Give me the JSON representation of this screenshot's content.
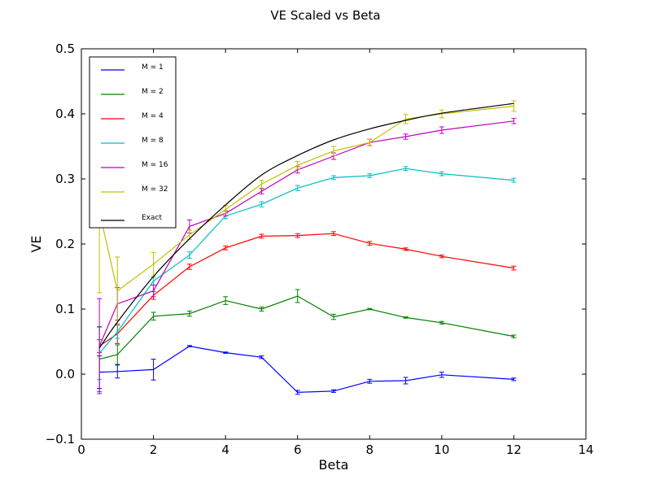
{
  "chart_data": {
    "type": "line",
    "title": "VE Scaled vs Beta",
    "xlabel": "Beta",
    "ylabel": "VE",
    "xlim": [
      0,
      14
    ],
    "ylim": [
      -0.1,
      0.5
    ],
    "xticks": [
      0,
      2,
      4,
      6,
      8,
      10,
      12,
      14
    ],
    "xtick_labels": [
      "0",
      "2",
      "4",
      "6",
      "8",
      "10",
      "12",
      "14"
    ],
    "yticks": [
      -0.1,
      0.0,
      0.1,
      0.2,
      0.3,
      0.4,
      0.5
    ],
    "ytick_labels": [
      "−0.1",
      "0.0",
      "0.1",
      "0.2",
      "0.3",
      "0.4",
      "0.5"
    ],
    "grid": false,
    "legend_position": "top-left",
    "x": [
      0.5,
      1,
      2,
      3,
      4,
      5,
      6,
      7,
      8,
      9,
      10,
      12
    ],
    "series": [
      {
        "name": "M = 1",
        "color": "#0000ff",
        "values": [
          0.003,
          0.004,
          0.007,
          0.043,
          0.033,
          0.026,
          -0.028,
          -0.026,
          -0.011,
          -0.01,
          -0.001,
          -0.008
        ],
        "errors": [
          0.025,
          0.01,
          0.016,
          0.001,
          0.001,
          0.002,
          0.003,
          0.002,
          0.003,
          0.005,
          0.004,
          0.002
        ]
      },
      {
        "name": "M = 2",
        "color": "#008000",
        "values": [
          0.023,
          0.03,
          0.089,
          0.093,
          0.113,
          0.1,
          0.12,
          0.088,
          0.1,
          0.087,
          0.079,
          0.058
        ],
        "errors": [
          0.05,
          0.015,
          0.006,
          0.004,
          0.006,
          0.003,
          0.01,
          0.004,
          0.001,
          0.001,
          0.002,
          0.002
        ]
      },
      {
        "name": "M = 4",
        "color": "#ff0000",
        "values": [
          0.043,
          0.062,
          0.121,
          0.165,
          0.194,
          0.212,
          0.213,
          0.216,
          0.201,
          0.192,
          0.181,
          0.163
        ],
        "errors": [
          0.01,
          0.015,
          0.006,
          0.004,
          0.003,
          0.003,
          0.003,
          0.003,
          0.003,
          0.002,
          0.002,
          0.003
        ]
      },
      {
        "name": "M = 8",
        "color": "#00bfbf",
        "values": [
          0.032,
          0.065,
          0.143,
          0.183,
          0.243,
          0.261,
          0.286,
          0.302,
          0.305,
          0.316,
          0.308,
          0.298
        ],
        "errors": [
          0.04,
          0.01,
          0.006,
          0.005,
          0.004,
          0.004,
          0.004,
          0.003,
          0.003,
          0.003,
          0.003,
          0.003
        ]
      },
      {
        "name": "M = 16",
        "color": "#bf00bf",
        "values": [
          0.043,
          0.108,
          0.128,
          0.227,
          0.247,
          0.281,
          0.314,
          0.335,
          0.356,
          0.365,
          0.375,
          0.389
        ],
        "errors": [
          0.073,
          0.025,
          0.009,
          0.01,
          0.004,
          0.004,
          0.005,
          0.005,
          0.005,
          0.004,
          0.005,
          0.004
        ]
      },
      {
        "name": "M = 32",
        "color": "#bfbf00",
        "values": [
          0.25,
          0.128,
          0.169,
          0.214,
          0.253,
          0.292,
          0.321,
          0.343,
          0.356,
          0.392,
          0.4,
          0.412
        ],
        "errors": [
          0.125,
          0.052,
          0.018,
          0.007,
          0.006,
          0.006,
          0.006,
          0.007,
          0.005,
          0.007,
          0.006,
          0.008
        ]
      },
      {
        "name": "Exact",
        "color": "#000000",
        "curve": "smooth",
        "values": [
          0.04,
          0.08,
          0.15,
          0.208,
          0.26,
          0.306,
          0.336,
          0.36,
          0.377,
          0.39,
          0.401,
          0.416
        ],
        "errors": null
      }
    ]
  }
}
